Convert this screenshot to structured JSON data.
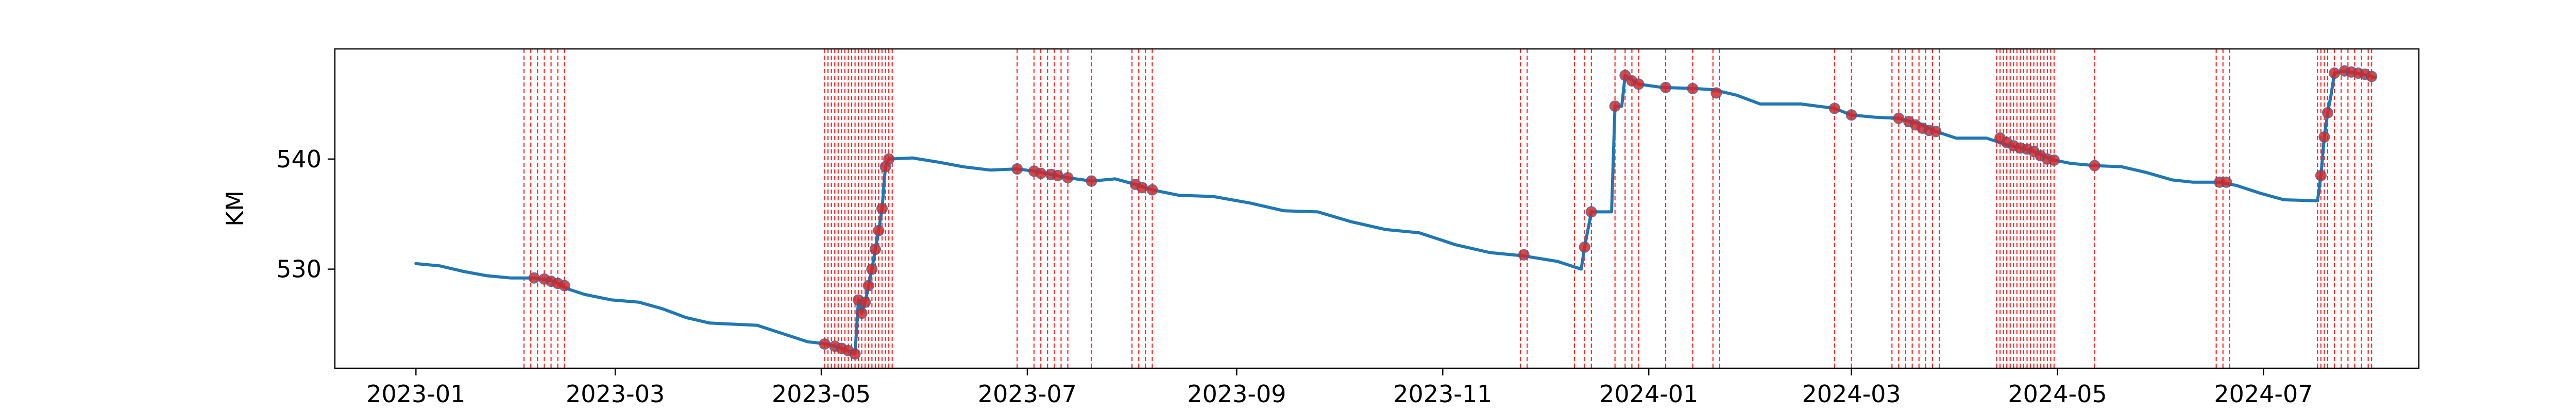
{
  "chart_data": {
    "type": "line",
    "title": "",
    "xlabel": "",
    "ylabel": "KM",
    "x_range": [
      "2022-12-08",
      "2024-08-16"
    ],
    "ylim": [
      521,
      550
    ],
    "x_ticks": [
      "2023-01",
      "2023-03",
      "2023-05",
      "2023-07",
      "2023-09",
      "2023-11",
      "2024-01",
      "2024-03",
      "2024-05",
      "2024-07"
    ],
    "x_tick_dates": [
      "2023-01-01",
      "2023-03-01",
      "2023-05-01",
      "2023-07-01",
      "2023-09-01",
      "2023-11-01",
      "2024-01-01",
      "2024-03-01",
      "2024-05-01",
      "2024-07-01"
    ],
    "y_ticks": [
      530,
      540
    ],
    "grid": false,
    "legend": "none",
    "colors": {
      "line": "#1f77b4",
      "marker": "#d62728",
      "vline": "#ff0000"
    },
    "series": [
      {
        "points": [
          [
            "2023-01-01",
            530.5
          ],
          [
            "2023-01-08",
            530.3
          ],
          [
            "2023-01-15",
            529.8
          ],
          [
            "2023-01-22",
            529.4
          ],
          [
            "2023-01-29",
            529.2
          ],
          [
            "2023-02-05",
            529.2
          ],
          [
            "2023-02-11",
            528.9
          ],
          [
            "2023-02-15",
            528.2
          ],
          [
            "2023-02-20",
            527.7
          ],
          [
            "2023-02-28",
            527.2
          ],
          [
            "2023-03-08",
            527.0
          ],
          [
            "2023-03-15",
            526.4
          ],
          [
            "2023-03-22",
            525.6
          ],
          [
            "2023-03-29",
            525.1
          ],
          [
            "2023-04-05",
            525.0
          ],
          [
            "2023-04-12",
            524.9
          ],
          [
            "2023-04-20",
            524.1
          ],
          [
            "2023-04-27",
            523.4
          ],
          [
            "2023-05-03",
            523.2
          ],
          [
            "2023-05-06",
            522.9
          ],
          [
            "2023-05-09",
            522.6
          ],
          [
            "2023-05-11",
            522.3
          ],
          [
            "2023-05-12",
            527.2
          ],
          [
            "2023-05-13",
            526.0
          ],
          [
            "2023-05-14",
            527.0
          ],
          [
            "2023-05-15",
            528.5
          ],
          [
            "2023-05-16",
            530.0
          ],
          [
            "2023-05-17",
            531.8
          ],
          [
            "2023-05-18",
            533.5
          ],
          [
            "2023-05-19",
            535.5
          ],
          [
            "2023-05-20",
            539.3
          ],
          [
            "2023-05-21",
            540.0
          ],
          [
            "2023-05-28",
            540.1
          ],
          [
            "2023-06-05",
            539.7
          ],
          [
            "2023-06-12",
            539.3
          ],
          [
            "2023-06-20",
            539.0
          ],
          [
            "2023-06-28",
            539.1
          ],
          [
            "2023-07-03",
            538.9
          ],
          [
            "2023-07-08",
            538.6
          ],
          [
            "2023-07-13",
            538.3
          ],
          [
            "2023-07-20",
            538.0
          ],
          [
            "2023-07-27",
            538.2
          ],
          [
            "2023-08-02",
            537.7
          ],
          [
            "2023-08-07",
            537.2
          ],
          [
            "2023-08-15",
            536.7
          ],
          [
            "2023-08-25",
            536.6
          ],
          [
            "2023-09-05",
            536.0
          ],
          [
            "2023-09-15",
            535.3
          ],
          [
            "2023-09-25",
            535.2
          ],
          [
            "2023-10-05",
            534.3
          ],
          [
            "2023-10-15",
            533.6
          ],
          [
            "2023-10-25",
            533.3
          ],
          [
            "2023-11-05",
            532.2
          ],
          [
            "2023-11-15",
            531.5
          ],
          [
            "2023-11-25",
            531.2
          ],
          [
            "2023-12-05",
            530.7
          ],
          [
            "2023-12-12",
            530.0
          ],
          [
            "2023-12-13",
            532.0
          ],
          [
            "2023-12-15",
            535.2
          ],
          [
            "2023-12-21",
            535.2
          ],
          [
            "2023-12-22",
            544.8
          ],
          [
            "2023-12-24",
            544.8
          ],
          [
            "2023-12-25",
            547.6
          ],
          [
            "2023-12-29",
            546.8
          ],
          [
            "2024-01-05",
            546.5
          ],
          [
            "2024-01-15",
            546.4
          ],
          [
            "2024-01-20",
            546.3
          ],
          [
            "2024-01-27",
            545.8
          ],
          [
            "2024-02-03",
            545.0
          ],
          [
            "2024-02-15",
            545.0
          ],
          [
            "2024-02-25",
            544.6
          ],
          [
            "2024-03-01",
            544.0
          ],
          [
            "2024-03-08",
            543.8
          ],
          [
            "2024-03-15",
            543.7
          ],
          [
            "2024-03-21",
            543.2
          ],
          [
            "2024-03-26",
            542.5
          ],
          [
            "2024-04-01",
            541.9
          ],
          [
            "2024-04-10",
            541.9
          ],
          [
            "2024-04-16",
            541.3
          ],
          [
            "2024-04-23",
            540.8
          ],
          [
            "2024-04-30",
            539.9
          ],
          [
            "2024-05-05",
            539.6
          ],
          [
            "2024-05-12",
            539.4
          ],
          [
            "2024-05-20",
            539.3
          ],
          [
            "2024-05-27",
            538.8
          ],
          [
            "2024-06-04",
            538.1
          ],
          [
            "2024-06-10",
            537.9
          ],
          [
            "2024-06-18",
            537.9
          ],
          [
            "2024-06-23",
            537.6
          ],
          [
            "2024-06-30",
            536.9
          ],
          [
            "2024-07-07",
            536.3
          ],
          [
            "2024-07-17",
            536.2
          ],
          [
            "2024-07-18",
            538.5
          ],
          [
            "2024-07-19",
            542.0
          ],
          [
            "2024-07-20",
            544.2
          ],
          [
            "2024-07-21",
            545.8
          ],
          [
            "2024-07-22",
            547.8
          ],
          [
            "2024-07-25",
            548.0
          ],
          [
            "2024-07-28",
            547.8
          ],
          [
            "2024-08-01",
            547.6
          ],
          [
            "2024-08-03",
            547.4
          ]
        ]
      }
    ],
    "markers": [
      [
        "2023-02-05",
        529.2
      ],
      [
        "2023-02-08",
        529.1
      ],
      [
        "2023-02-10",
        528.9
      ],
      [
        "2023-02-12",
        528.7
      ],
      [
        "2023-02-14",
        528.5
      ],
      [
        "2023-05-02",
        523.2
      ],
      [
        "2023-05-05",
        523.0
      ],
      [
        "2023-05-07",
        522.8
      ],
      [
        "2023-05-09",
        522.6
      ],
      [
        "2023-05-11",
        522.3
      ],
      [
        "2023-05-12",
        527.2
      ],
      [
        "2023-05-13",
        526.0
      ],
      [
        "2023-05-14",
        527.0
      ],
      [
        "2023-05-15",
        528.5
      ],
      [
        "2023-05-16",
        530.0
      ],
      [
        "2023-05-17",
        531.8
      ],
      [
        "2023-05-18",
        533.5
      ],
      [
        "2023-05-19",
        535.5
      ],
      [
        "2023-05-20",
        539.3
      ],
      [
        "2023-05-21",
        540.0
      ],
      [
        "2023-06-28",
        539.1
      ],
      [
        "2023-07-03",
        538.9
      ],
      [
        "2023-07-05",
        538.7
      ],
      [
        "2023-07-08",
        538.6
      ],
      [
        "2023-07-10",
        538.5
      ],
      [
        "2023-07-13",
        538.3
      ],
      [
        "2023-07-20",
        538.0
      ],
      [
        "2023-08-02",
        537.7
      ],
      [
        "2023-08-04",
        537.4
      ],
      [
        "2023-08-07",
        537.2
      ],
      [
        "2023-11-25",
        531.3
      ],
      [
        "2023-12-13",
        532.0
      ],
      [
        "2023-12-15",
        535.2
      ],
      [
        "2023-12-22",
        544.8
      ],
      [
        "2023-12-25",
        547.6
      ],
      [
        "2023-12-27",
        547.1
      ],
      [
        "2023-12-29",
        546.8
      ],
      [
        "2024-01-06",
        546.5
      ],
      [
        "2024-01-14",
        546.4
      ],
      [
        "2024-01-21",
        546.0
      ],
      [
        "2024-02-25",
        544.6
      ],
      [
        "2024-03-01",
        544.0
      ],
      [
        "2024-03-15",
        543.7
      ],
      [
        "2024-03-18",
        543.4
      ],
      [
        "2024-03-20",
        543.1
      ],
      [
        "2024-03-22",
        542.8
      ],
      [
        "2024-03-24",
        542.6
      ],
      [
        "2024-03-26",
        542.5
      ],
      [
        "2024-04-14",
        541.9
      ],
      [
        "2024-04-16",
        541.5
      ],
      [
        "2024-04-18",
        541.2
      ],
      [
        "2024-04-20",
        541.0
      ],
      [
        "2024-04-22",
        540.9
      ],
      [
        "2024-04-24",
        540.7
      ],
      [
        "2024-04-26",
        540.3
      ],
      [
        "2024-04-28",
        540.0
      ],
      [
        "2024-04-30",
        539.9
      ],
      [
        "2024-05-12",
        539.4
      ],
      [
        "2024-06-18",
        537.9
      ],
      [
        "2024-06-20",
        537.9
      ],
      [
        "2024-07-18",
        538.5
      ],
      [
        "2024-07-19",
        542.0
      ],
      [
        "2024-07-20",
        544.2
      ],
      [
        "2024-07-22",
        547.8
      ],
      [
        "2024-07-25",
        548.0
      ],
      [
        "2024-07-27",
        547.9
      ],
      [
        "2024-07-29",
        547.8
      ],
      [
        "2024-07-31",
        547.7
      ],
      [
        "2024-08-02",
        547.5
      ]
    ],
    "vlines": [
      "2023-02-02",
      "2023-02-04",
      "2023-02-06",
      "2023-02-08",
      "2023-02-10",
      "2023-02-12",
      "2023-02-14",
      "2023-05-02",
      "2023-05-03",
      "2023-05-04",
      "2023-05-05",
      "2023-05-06",
      "2023-05-07",
      "2023-05-08",
      "2023-05-09",
      "2023-05-10",
      "2023-05-11",
      "2023-05-12",
      "2023-05-13",
      "2023-05-14",
      "2023-05-15",
      "2023-05-16",
      "2023-05-17",
      "2023-05-18",
      "2023-05-19",
      "2023-05-20",
      "2023-05-21",
      "2023-05-22",
      "2023-06-28",
      "2023-07-03",
      "2023-07-05",
      "2023-07-07",
      "2023-07-09",
      "2023-07-11",
      "2023-07-13",
      "2023-07-20",
      "2023-08-01",
      "2023-08-03",
      "2023-08-05",
      "2023-08-07",
      "2023-11-24",
      "2023-11-26",
      "2023-12-10",
      "2023-12-13",
      "2023-12-15",
      "2023-12-22",
      "2023-12-25",
      "2023-12-27",
      "2023-12-29",
      "2024-01-06",
      "2024-01-14",
      "2024-01-20",
      "2024-01-22",
      "2024-02-25",
      "2024-03-01",
      "2024-03-13",
      "2024-03-15",
      "2024-03-17",
      "2024-03-19",
      "2024-03-21",
      "2024-03-23",
      "2024-03-25",
      "2024-03-27",
      "2024-04-13",
      "2024-04-14",
      "2024-04-15",
      "2024-04-16",
      "2024-04-17",
      "2024-04-18",
      "2024-04-19",
      "2024-04-20",
      "2024-04-21",
      "2024-04-22",
      "2024-04-23",
      "2024-04-24",
      "2024-04-25",
      "2024-04-26",
      "2024-04-27",
      "2024-04-28",
      "2024-04-29",
      "2024-04-30",
      "2024-05-12",
      "2024-06-17",
      "2024-06-19",
      "2024-06-21",
      "2024-07-17",
      "2024-07-18",
      "2024-07-19",
      "2024-07-20",
      "2024-07-22",
      "2024-07-24",
      "2024-07-26",
      "2024-07-28",
      "2024-07-30",
      "2024-08-01",
      "2024-08-02"
    ]
  }
}
